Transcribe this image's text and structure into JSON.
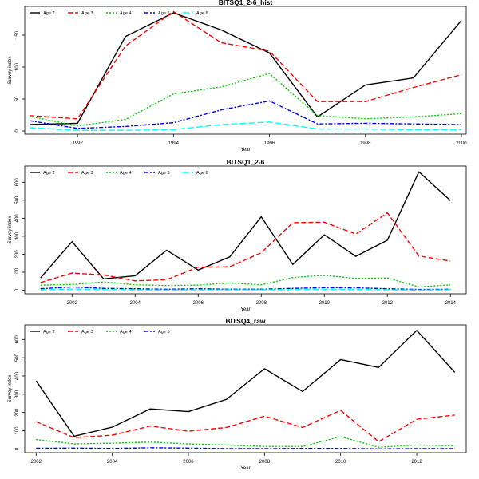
{
  "colors": {
    "Age 2": "#000000",
    "Age 3": "#ff0000",
    "Age 4": "#00cd00",
    "Age 5": "#0000ff",
    "Age 6": "#00ffff"
  },
  "dashes": {
    "Age 2": "",
    "Age 3": "6,3",
    "Age 4": "2,2",
    "Age 5": "5,2,2,2",
    "Age 6": "8,3"
  },
  "chart_data": [
    {
      "type": "line",
      "title": "BITSQ1_2-6_hist",
      "xlabel": "Year",
      "ylabel": "Survey index",
      "xlim": [
        1990.9,
        2000.1
      ],
      "ylim": [
        -5,
        195
      ],
      "xticks": [
        1992,
        1994,
        1996,
        1998,
        2000
      ],
      "yticks": [
        0,
        50,
        100,
        150
      ],
      "x": [
        1991,
        1992,
        1993,
        1994,
        1995,
        1996,
        1997,
        1998,
        1999,
        2000
      ],
      "legend_position": "top-left",
      "series": [
        {
          "name": "Age 2",
          "values": [
            10,
            12,
            148,
            185,
            158,
            122,
            22,
            72,
            83,
            173
          ]
        },
        {
          "name": "Age 3",
          "values": [
            24,
            19,
            133,
            187,
            138,
            125,
            46,
            46,
            68,
            88
          ]
        },
        {
          "name": "Age 4",
          "values": [
            23,
            8,
            18,
            58,
            69,
            90,
            24,
            19,
            22,
            27
          ]
        },
        {
          "name": "Age 5",
          "values": [
            16,
            4,
            7,
            13,
            33,
            47,
            11,
            12,
            11,
            10
          ]
        },
        {
          "name": "Age 6",
          "values": [
            5,
            1,
            1,
            2,
            10,
            14,
            3,
            3,
            2,
            2
          ]
        }
      ]
    },
    {
      "type": "line",
      "title": "BITSQ1_2-6",
      "xlabel": "Year",
      "ylabel": "Survey index",
      "xlim": [
        2000.5,
        2014.5
      ],
      "ylim": [
        -20,
        690
      ],
      "xticks": [
        2002,
        2004,
        2006,
        2008,
        2010,
        2012,
        2014
      ],
      "yticks": [
        0,
        100,
        200,
        300,
        400,
        500,
        600
      ],
      "x": [
        2001,
        2002,
        2003,
        2004,
        2005,
        2006,
        2007,
        2008,
        2009,
        2010,
        2011,
        2012,
        2013,
        2014
      ],
      "legend_position": "top-left",
      "series": [
        {
          "name": "Age 2",
          "values": [
            68,
            270,
            63,
            80,
            222,
            112,
            185,
            408,
            143,
            308,
            188,
            278,
            658,
            498
          ]
        },
        {
          "name": "Age 3",
          "values": [
            42,
            95,
            85,
            52,
            58,
            128,
            130,
            208,
            375,
            378,
            312,
            430,
            190,
            162
          ]
        },
        {
          "name": "Age 4",
          "values": [
            28,
            32,
            46,
            30,
            26,
            28,
            40,
            30,
            70,
            83,
            65,
            68,
            18,
            30
          ]
        },
        {
          "name": "Age 5",
          "values": [
            8,
            18,
            10,
            8,
            5,
            8,
            5,
            5,
            10,
            14,
            13,
            8,
            4,
            5
          ]
        },
        {
          "name": "Age 6",
          "values": [
            2,
            6,
            3,
            2,
            1,
            2,
            2,
            2,
            3,
            5,
            4,
            2,
            1,
            2
          ]
        }
      ]
    },
    {
      "type": "line",
      "title": "BITSQ4_raw",
      "xlabel": "Year",
      "ylabel": "Survey index",
      "xlim": [
        2001.7,
        2013.3
      ],
      "ylim": [
        -20,
        680
      ],
      "xticks": [
        2002,
        2004,
        2006,
        2008,
        2010,
        2012
      ],
      "yticks": [
        0,
        100,
        200,
        300,
        400,
        500,
        600
      ],
      "x": [
        2002,
        2003,
        2004,
        2005,
        2006,
        2007,
        2008,
        2009,
        2010,
        2011,
        2012,
        2013
      ],
      "legend_position": "top-left",
      "series": [
        {
          "name": "Age 2",
          "values": [
            373,
            70,
            120,
            220,
            205,
            272,
            440,
            315,
            490,
            447,
            650,
            420
          ]
        },
        {
          "name": "Age 3",
          "values": [
            150,
            62,
            76,
            126,
            98,
            118,
            180,
            118,
            212,
            40,
            163,
            186
          ]
        },
        {
          "name": "Age 4",
          "values": [
            52,
            28,
            32,
            38,
            28,
            22,
            14,
            14,
            68,
            10,
            22,
            17
          ]
        },
        {
          "name": "Age 5",
          "values": [
            4,
            5,
            3,
            7,
            5,
            2,
            2,
            3,
            3,
            1,
            2,
            2
          ]
        }
      ]
    }
  ]
}
